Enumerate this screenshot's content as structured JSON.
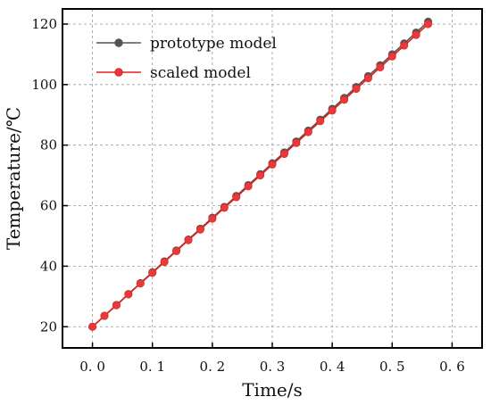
{
  "chart_data": {
    "type": "line",
    "xlabel": "Time/s",
    "ylabel": "Temperature/℃",
    "xlim": [
      -0.05,
      0.65
    ],
    "ylim": [
      13,
      125
    ],
    "x_ticks": [
      0.0,
      0.1,
      0.2,
      0.3,
      0.4,
      0.5,
      0.6
    ],
    "x_tick_labels": [
      "0. 0",
      "0. 1",
      "0. 2",
      "0. 3",
      "0. 4",
      "0. 5",
      "0. 6"
    ],
    "y_ticks": [
      20,
      40,
      60,
      80,
      100,
      120
    ],
    "y_tick_labels": [
      "20",
      "40",
      "60",
      "80",
      "100",
      "120"
    ],
    "grid": true,
    "legend_position": "top-left",
    "series": [
      {
        "name": "prototype model",
        "color": "#555555",
        "marker_color": "#555555",
        "x": [
          0.0,
          0.02,
          0.04,
          0.06,
          0.08,
          0.1,
          0.12,
          0.14,
          0.16,
          0.18,
          0.2,
          0.22,
          0.24,
          0.26,
          0.28,
          0.3,
          0.32,
          0.34,
          0.36,
          0.38,
          0.4,
          0.42,
          0.44,
          0.46,
          0.48,
          0.5,
          0.52,
          0.54,
          0.56
        ],
        "y": [
          20.0,
          23.6,
          27.2,
          30.8,
          34.4,
          38.0,
          41.6,
          45.2,
          48.8,
          52.4,
          56.0,
          59.6,
          63.2,
          66.8,
          70.4,
          74.0,
          77.6,
          81.2,
          84.8,
          88.4,
          92.0,
          95.6,
          99.2,
          102.8,
          106.4,
          110.0,
          113.6,
          117.2,
          120.8
        ]
      },
      {
        "name": "scaled model",
        "color": "#e0201e",
        "marker_color": "#e83a3a",
        "x": [
          0.0,
          0.02,
          0.04,
          0.06,
          0.08,
          0.1,
          0.12,
          0.14,
          0.16,
          0.18,
          0.2,
          0.22,
          0.24,
          0.26,
          0.28,
          0.3,
          0.32,
          0.34,
          0.36,
          0.38,
          0.4,
          0.42,
          0.44,
          0.46,
          0.48,
          0.5,
          0.52,
          0.54,
          0.56
        ],
        "y": [
          20.0,
          23.6,
          27.1,
          30.7,
          34.3,
          37.8,
          41.4,
          45.0,
          48.6,
          52.1,
          55.7,
          59.3,
          62.8,
          66.4,
          70.0,
          73.6,
          77.1,
          80.7,
          84.3,
          87.9,
          91.4,
          95.0,
          98.6,
          102.1,
          105.7,
          109.3,
          112.9,
          116.4,
          120.0
        ]
      }
    ]
  }
}
